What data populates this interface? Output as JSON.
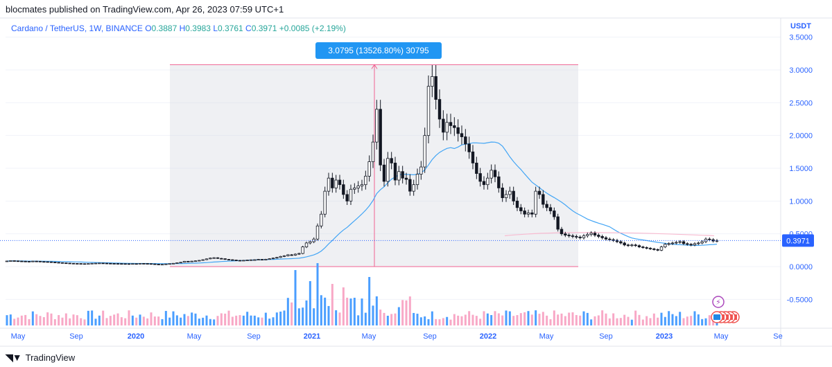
{
  "header": {
    "published": "blocmates published on TradingView.com, Apr 26, 2023 07:59 UTC+1"
  },
  "legend": {
    "symbol": "Cardano / TetherUS, 1W, BINANCE",
    "o_label": "O",
    "o_value": "0.3887",
    "h_label": "H",
    "h_value": "0.3983",
    "l_label": "L",
    "l_value": "0.3761",
    "c_label": "C",
    "c_value": "0.3971",
    "change": "+0.0085 (+2.19%)"
  },
  "axis": {
    "currency": "USDT"
  },
  "measure_label": "3.0795 (13526.80%) 30795",
  "last_price_label": "0.3971",
  "footer": {
    "brand": "TradingView"
  },
  "colors": {
    "up": "#26a69a",
    "down": "#ef5350",
    "candle_body_up": "#ffffff",
    "candle_body_down": "#131722",
    "ma": "#42a5f5",
    "pink": "#f48fb1",
    "vol_up": "#4a9eff",
    "vol_down": "#f8a8c6",
    "axis_text": "#2962ff",
    "measure": "#f06292"
  },
  "chart_data": {
    "type": "candlestick",
    "title": "Cardano / TetherUS, 1W, BINANCE",
    "ylim": [
      -0.75,
      3.6
    ],
    "y_ticks": [
      "3.5000",
      "3.0000",
      "2.5000",
      "2.0000",
      "1.5000",
      "1.0000",
      "0.5000",
      "0.0000",
      "-0.5000"
    ],
    "y_tick_values": [
      3.5,
      3.0,
      2.5,
      2.0,
      1.5,
      1.0,
      0.5,
      0.0,
      -0.5
    ],
    "x_ticks": [
      "May",
      "Sep",
      "2020",
      "May",
      "Sep",
      "2021",
      "May",
      "Sep",
      "2022",
      "May",
      "Sep",
      "2023",
      "May",
      "Se"
    ],
    "x_ticks_bold": [
      false,
      false,
      true,
      false,
      false,
      true,
      false,
      false,
      true,
      false,
      false,
      true,
      false,
      false
    ],
    "close": [
      0.085,
      0.09,
      0.087,
      0.084,
      0.082,
      0.08,
      0.078,
      0.083,
      0.081,
      0.077,
      0.075,
      0.072,
      0.068,
      0.064,
      0.06,
      0.056,
      0.053,
      0.05,
      0.048,
      0.047,
      0.045,
      0.044,
      0.046,
      0.05,
      0.052,
      0.054,
      0.052,
      0.05,
      0.048,
      0.047,
      0.046,
      0.045,
      0.044,
      0.043,
      0.045,
      0.044,
      0.048,
      0.047,
      0.045,
      0.041,
      0.037,
      0.034,
      0.035,
      0.04,
      0.045,
      0.05,
      0.058,
      0.066,
      0.081,
      0.08,
      0.083,
      0.088,
      0.095,
      0.105,
      0.118,
      0.13,
      0.135,
      0.125,
      0.12,
      0.11,
      0.105,
      0.1,
      0.095,
      0.094,
      0.096,
      0.1,
      0.103,
      0.105,
      0.11,
      0.108,
      0.112,
      0.12,
      0.13,
      0.14,
      0.155,
      0.165,
      0.18,
      0.175,
      0.19,
      0.2,
      0.3,
      0.36,
      0.38,
      0.42,
      0.62,
      0.8,
      1.15,
      1.35,
      1.2,
      1.32,
      1.25,
      1.1,
      1.0,
      1.18,
      1.2,
      1.23,
      1.25,
      1.38,
      1.6,
      1.9,
      2.4,
      1.55,
      1.3,
      1.65,
      1.58,
      1.32,
      1.45,
      1.35,
      1.33,
      1.15,
      1.25,
      1.41,
      1.52,
      2.0,
      2.75,
      2.9,
      2.55,
      2.25,
      2.05,
      2.2,
      2.15,
      2.12,
      2.03,
      1.98,
      1.87,
      1.75,
      1.58,
      1.42,
      1.3,
      1.25,
      1.35,
      1.47,
      1.37,
      1.2,
      1.05,
      1.1,
      1.15,
      1.0,
      0.9,
      0.85,
      0.8,
      0.82,
      0.8,
      1.15,
      1.1,
      0.95,
      0.9,
      0.85,
      0.76,
      0.57,
      0.5,
      0.48,
      0.47,
      0.46,
      0.45,
      0.44,
      0.47,
      0.49,
      0.51,
      0.48,
      0.46,
      0.44,
      0.42,
      0.41,
      0.4,
      0.38,
      0.36,
      0.33,
      0.32,
      0.33,
      0.32,
      0.3,
      0.29,
      0.28,
      0.27,
      0.26,
      0.25,
      0.3,
      0.34,
      0.35,
      0.36,
      0.37,
      0.38,
      0.35,
      0.34,
      0.33,
      0.35,
      0.36,
      0.38,
      0.42,
      0.41,
      0.39,
      0.397
    ],
    "ma_series": "Moving average (approximate, pixel-free values)",
    "volume_note": "Weekly volume histogram (relative heights)"
  }
}
